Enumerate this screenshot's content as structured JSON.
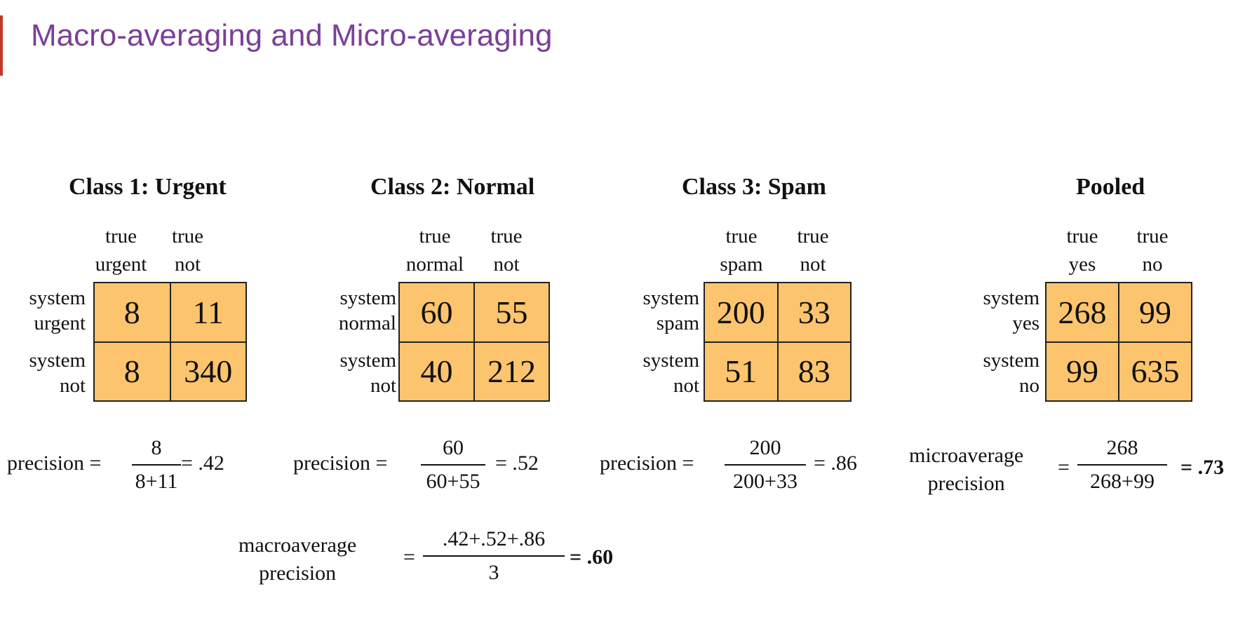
{
  "title": "Macro-averaging and Micro-averaging",
  "classes": [
    {
      "title": "Class 1: Urgent",
      "col_labels": [
        [
          "true",
          "urgent"
        ],
        [
          "true",
          "not"
        ]
      ],
      "row_labels": [
        [
          "system",
          "urgent"
        ],
        [
          "system",
          "not"
        ]
      ],
      "cells": [
        [
          "8",
          "11"
        ],
        [
          "8",
          "340"
        ]
      ],
      "formula": {
        "label": "precision =",
        "numerator": "8",
        "denominator": "8+11",
        "result": "= .42"
      }
    },
    {
      "title": "Class 2: Normal",
      "col_labels": [
        [
          "true",
          "normal"
        ],
        [
          "true",
          "not"
        ]
      ],
      "row_labels": [
        [
          "system",
          "normal"
        ],
        [
          "system",
          "not"
        ]
      ],
      "cells": [
        [
          "60",
          "55"
        ],
        [
          "40",
          "212"
        ]
      ],
      "formula": {
        "label": "precision =",
        "numerator": "60",
        "denominator": "60+55",
        "result": "= .52"
      }
    },
    {
      "title": "Class 3: Spam",
      "col_labels": [
        [
          "true",
          "spam"
        ],
        [
          "true",
          "not"
        ]
      ],
      "row_labels": [
        [
          "system",
          "spam"
        ],
        [
          "system",
          "not"
        ]
      ],
      "cells": [
        [
          "200",
          "33"
        ],
        [
          "51",
          "83"
        ]
      ],
      "formula": {
        "label": "precision =",
        "numerator": "200",
        "denominator": "200+33",
        "result": "= .86"
      }
    },
    {
      "title": "Pooled",
      "col_labels": [
        [
          "true",
          "yes"
        ],
        [
          "true",
          "no"
        ]
      ],
      "row_labels": [
        [
          "system",
          "yes"
        ],
        [
          "system",
          "no"
        ]
      ],
      "cells": [
        [
          "268",
          "99"
        ],
        [
          "99",
          "635"
        ]
      ],
      "formula": {
        "label_lines": [
          "microaverage",
          "precision"
        ],
        "equals": "=",
        "numerator": "268",
        "denominator": "268+99",
        "result": "= .73"
      }
    }
  ],
  "macro": {
    "label_lines": [
      "macroaverage",
      "precision"
    ],
    "equals": "=",
    "numerator": ".42+.52+.86",
    "denominator": "3",
    "result": "= .60"
  },
  "colors": {
    "cell_fill": "#fcc46d",
    "title": "#7b3f98",
    "accent": "#c0392b"
  }
}
